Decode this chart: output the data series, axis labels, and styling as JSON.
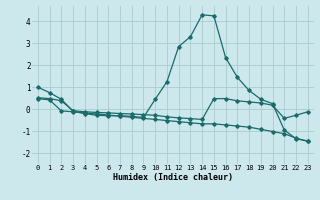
{
  "background_color": "#cce8ec",
  "grid_color": "#aacccc",
  "line_color": "#1a6b6b",
  "xlabel": "Humidex (Indice chaleur)",
  "xlim": [
    -0.5,
    23.5
  ],
  "ylim": [
    -2.5,
    4.7
  ],
  "yticks": [
    -2,
    -1,
    0,
    1,
    2,
    3,
    4
  ],
  "xticks": [
    0,
    1,
    2,
    3,
    4,
    5,
    6,
    7,
    8,
    9,
    10,
    11,
    12,
    13,
    14,
    15,
    16,
    17,
    18,
    19,
    20,
    21,
    22,
    23
  ],
  "line1_y": [
    1.0,
    0.75,
    0.45,
    -0.1,
    -0.2,
    -0.28,
    -0.3,
    -0.3,
    -0.33,
    -0.38,
    0.45,
    1.25,
    2.85,
    3.3,
    4.3,
    4.25,
    2.35,
    1.45,
    0.85,
    0.45,
    0.25,
    -0.95,
    -1.35,
    -1.45
  ],
  "line2_y": [
    0.48,
    0.42,
    -0.08,
    -0.12,
    -0.18,
    -0.22,
    -0.27,
    -0.32,
    -0.37,
    -0.42,
    -0.47,
    -0.52,
    -0.57,
    -0.62,
    -0.67,
    -0.67,
    -0.72,
    -0.77,
    -0.82,
    -0.92,
    -1.02,
    -1.12,
    -1.32,
    -1.47
  ],
  "line3_y": [
    0.52,
    0.48,
    0.38,
    -0.07,
    -0.12,
    -0.15,
    -0.17,
    -0.2,
    -0.22,
    -0.25,
    -0.28,
    -0.35,
    -0.4,
    -0.43,
    -0.47,
    0.48,
    0.48,
    0.38,
    0.33,
    0.28,
    0.18,
    -0.42,
    -0.28,
    -0.12
  ],
  "fontsize_label": 6,
  "fontsize_tick": 5,
  "marker": "D",
  "markersize": 1.8,
  "linewidth": 0.9
}
